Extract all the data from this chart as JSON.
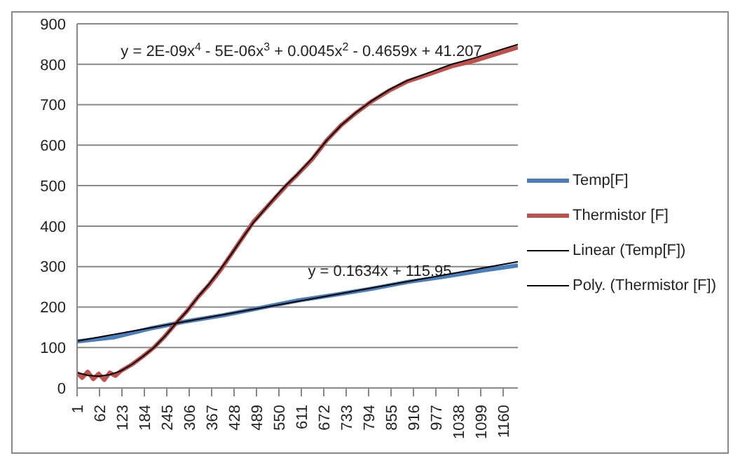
{
  "chart_data": {
    "type": "line",
    "xlim": [
      1,
      1200
    ],
    "xticks": [
      1,
      62,
      123,
      184,
      245,
      306,
      367,
      428,
      489,
      550,
      611,
      672,
      733,
      794,
      855,
      916,
      977,
      1038,
      1099,
      1160
    ],
    "ylim": [
      0,
      900
    ],
    "yticks": [
      0,
      100,
      200,
      300,
      400,
      500,
      600,
      700,
      800,
      900
    ],
    "grid": "y",
    "legend": "right",
    "series": [
      {
        "name": "Temp[F]",
        "color": "#4a7ebb",
        "x": [
          1,
          100,
          200,
          300,
          400,
          500,
          600,
          700,
          800,
          900,
          1000,
          1100,
          1200
        ],
        "values": [
          115,
          125,
          147,
          165,
          180,
          198,
          216,
          230,
          245,
          262,
          275,
          290,
          303
        ]
      },
      {
        "name": "Thermistor [F]",
        "color": "#c0504d",
        "x": [
          1,
          15,
          30,
          45,
          60,
          75,
          90,
          105,
          120,
          150,
          180,
          210,
          240,
          270,
          300,
          330,
          360,
          390,
          420,
          450,
          480,
          510,
          540,
          570,
          600,
          640,
          680,
          720,
          760,
          800,
          850,
          900,
          960,
          1020,
          1080,
          1140,
          1200
        ],
        "values": [
          37,
          25,
          40,
          22,
          35,
          20,
          38,
          30,
          42,
          58,
          78,
          100,
          128,
          160,
          190,
          225,
          255,
          290,
          330,
          370,
          410,
          440,
          470,
          500,
          527,
          565,
          612,
          650,
          680,
          707,
          735,
          758,
          776,
          795,
          808,
          825,
          842
        ]
      },
      {
        "name": "Linear (Temp[F])",
        "type": "line",
        "color": "#000000",
        "x": [
          1,
          1200
        ],
        "values": [
          116,
          312
        ]
      },
      {
        "name": "Poly. (Thermistor [F])",
        "type": "line",
        "color": "#000000",
        "x": [
          1,
          30,
          60,
          90,
          120,
          150,
          180,
          210,
          240,
          270,
          300,
          330,
          360,
          390,
          420,
          450,
          480,
          510,
          540,
          570,
          600,
          640,
          680,
          720,
          760,
          800,
          850,
          900,
          960,
          1020,
          1080,
          1140,
          1200
        ],
        "values": [
          38,
          31,
          29,
          33,
          42,
          58,
          78,
          100,
          128,
          160,
          190,
          225,
          257,
          292,
          330,
          370,
          408,
          440,
          472,
          502,
          528,
          567,
          612,
          650,
          681,
          708,
          737,
          760,
          780,
          800,
          815,
          832,
          849
        ]
      }
    ],
    "annotations": [
      "y = 2E-09x$^{4}$ - 5E-06x$^{3}$ + 0.0045x$^{2}$ - 0.4659x + 41.207",
      "y = 0.1634x + 115.95"
    ]
  }
}
